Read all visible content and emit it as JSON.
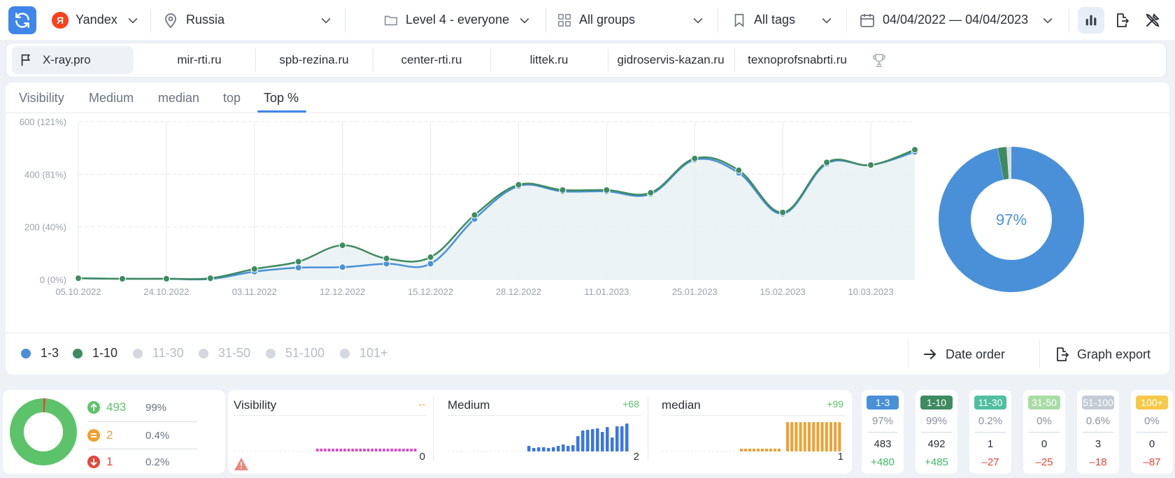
{
  "filters": {
    "engine": "Yandex",
    "engine_badge": "Я",
    "region": "Russia",
    "level": "Level 4 - everyone",
    "groups": "All groups",
    "tags": "All tags",
    "date_range": "04/04/2022 — 04/04/2023"
  },
  "domains": [
    {
      "label": "X-ray.pro",
      "active": true
    },
    {
      "label": "mir-rti.ru"
    },
    {
      "label": "spb-rezina.ru"
    },
    {
      "label": "center-rti.ru"
    },
    {
      "label": "littek.ru"
    },
    {
      "label": "gidroservis-kazan.ru"
    },
    {
      "label": "texnoprofsnabrti.ru"
    }
  ],
  "tabs": [
    {
      "label": "Visibility"
    },
    {
      "label": "Medium"
    },
    {
      "label": "median"
    },
    {
      "label": "top"
    },
    {
      "label": "Top %",
      "active": true
    }
  ],
  "chart_data": {
    "type": "area",
    "x": [
      "05.10.2022",
      "",
      "24.10.2022",
      "",
      "03.11.2022",
      "",
      "12.12.2022",
      "",
      "15.12.2022",
      "",
      "28.12.2022",
      "",
      "11.01.2023",
      "",
      "25.01.2023",
      "",
      "15.02.2023",
      "",
      "10.03.2023",
      ""
    ],
    "x_tick_labels": [
      "05.10.2022",
      "24.10.2022",
      "03.11.2022",
      "12.12.2022",
      "15.12.2022",
      "28.12.2022",
      "11.01.2023",
      "25.01.2023",
      "15.02.2023",
      "10.03.2023"
    ],
    "y_tick_labels": [
      "0 (0%)",
      "200 (40%)",
      "400 (81%)",
      "600 (121%)"
    ],
    "ylim": [
      0,
      600
    ],
    "series": [
      {
        "name": "1-3",
        "color": "#4a90d9",
        "values": [
          5,
          3,
          3,
          2,
          30,
          45,
          47,
          60,
          60,
          230,
          355,
          335,
          335,
          325,
          455,
          405,
          250,
          440,
          435,
          485
        ]
      },
      {
        "name": "1-10",
        "color": "#3d8b60",
        "values": [
          5,
          3,
          3,
          5,
          40,
          68,
          130,
          80,
          85,
          245,
          360,
          340,
          340,
          330,
          460,
          415,
          255,
          445,
          435,
          493
        ]
      }
    ],
    "donut": {
      "label": "97%",
      "segments": [
        {
          "value": 97,
          "color": "#4a90d9"
        },
        {
          "value": 2,
          "color": "#3d8b60"
        },
        {
          "value": 1,
          "color": "#d8dce2"
        }
      ]
    }
  },
  "legend": [
    {
      "label": "1-3",
      "color": "#4a90d9",
      "on": true
    },
    {
      "label": "1-10",
      "color": "#3d8b60",
      "on": true
    },
    {
      "label": "11-30",
      "color": "#d5d9df",
      "on": false
    },
    {
      "label": "31-50",
      "color": "#d5d9df",
      "on": false
    },
    {
      "label": "51-100",
      "color": "#d5d9df",
      "on": false
    },
    {
      "label": "101+",
      "color": "#d5d9df",
      "on": false
    }
  ],
  "actions": {
    "date_order": "Date order",
    "graph_export": "Graph export"
  },
  "positions": {
    "up": {
      "count": "493",
      "pct": "99%",
      "color": "#5cc36a"
    },
    "same": {
      "count": "2",
      "pct": "0.4%",
      "color": "#f0a030"
    },
    "down": {
      "count": "1",
      "pct": "0.2%",
      "color": "#e5473a"
    }
  },
  "minis": [
    {
      "title": "Visibility",
      "delta": "--",
      "delta_color": "#f0a030",
      "value": "0",
      "bar_color": "#e040c8"
    },
    {
      "title": "Medium",
      "delta": "+68",
      "delta_color": "#5cc36a",
      "value": "2",
      "bar_color": "#3a74e8"
    },
    {
      "title": "median",
      "delta": "+99",
      "delta_color": "#5cc36a",
      "value": "1",
      "bar_color": "#f0a030"
    }
  ],
  "range_cards": [
    {
      "label": "1-3",
      "color": "#4a90d9",
      "pct": "97%",
      "count": "483",
      "delta": "+480",
      "delta_color": "#3db86a"
    },
    {
      "label": "1-10",
      "color": "#3d8b60",
      "pct": "99%",
      "count": "492",
      "delta": "+485",
      "delta_color": "#3db86a"
    },
    {
      "label": "11-30",
      "color": "#4fbfa0",
      "pct": "0.2%",
      "count": "1",
      "delta": "–27",
      "delta_color": "#e5473a"
    },
    {
      "label": "31-50",
      "color": "#a9dca6",
      "pct": "0%",
      "count": "0",
      "delta": "–25",
      "delta_color": "#e5473a"
    },
    {
      "label": "51-100",
      "color": "#c4cbd4",
      "pct": "0.6%",
      "count": "3",
      "delta": "–18",
      "delta_color": "#e5473a"
    },
    {
      "label": "100+",
      "color": "#f7c948",
      "pct": "0%",
      "count": "0",
      "delta": "–87",
      "delta_color": "#e5473a"
    }
  ]
}
